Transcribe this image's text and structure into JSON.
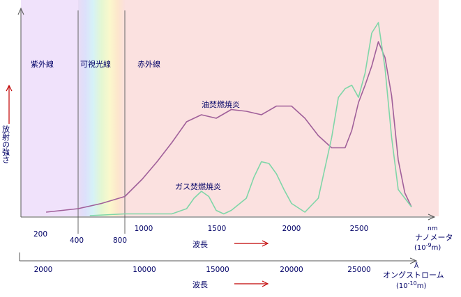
{
  "chart_data": {
    "type": "line",
    "region_labels": [
      "紫外線",
      "可視光線",
      "赤外線"
    ],
    "y_axis_label": "放射の強さ",
    "x_axis_label": "波長",
    "nm_axis": {
      "ticks": [
        "200",
        "400",
        "800",
        "1000",
        "1500",
        "2000",
        "2500"
      ],
      "unit_main": "ナノメータ",
      "unit_top": "nm",
      "unit_sub": "(10",
      "unit_exp": "-9",
      "unit_end": "m)"
    },
    "angstrom_axis": {
      "ticks": [
        "2000",
        "10000",
        "15000",
        "20000",
        "25000"
      ],
      "unit_main": "オングストローム",
      "unit_top": "Å",
      "unit_sub": "(10",
      "unit_exp": "-10",
      "unit_end": "m)"
    },
    "series": [
      {
        "name": "油焚燃焼炎",
        "color": "#a0609a",
        "x": [
          230,
          400,
          600,
          800,
          1000,
          1100,
          1200,
          1300,
          1400,
          1500,
          1600,
          1700,
          1800,
          1900,
          2000,
          2100,
          2200,
          2300,
          2400,
          2450,
          2500,
          2550,
          2600,
          2650,
          2700,
          2750,
          2800,
          2850,
          2900
        ],
        "y": [
          2,
          4,
          7,
          11,
          21,
          31,
          42,
          54,
          58,
          56,
          61,
          60,
          58,
          63,
          63,
          56,
          46,
          39,
          39,
          49,
          65,
          75,
          86,
          100,
          91,
          69,
          32,
          13,
          5
        ]
      },
      {
        "name": "ガス焚燃焼炎",
        "color": "#7fd6a8",
        "x": [
          500,
          800,
          1000,
          1200,
          1300,
          1350,
          1400,
          1450,
          1500,
          1550,
          1600,
          1700,
          1750,
          1800,
          1850,
          1900,
          1950,
          2000,
          2100,
          2200,
          2300,
          2350,
          2400,
          2450,
          2500,
          2550,
          2600,
          2650,
          2700,
          2750,
          2800,
          2900
        ],
        "y": [
          0,
          1,
          1,
          1,
          4,
          10,
          14,
          11,
          3,
          1,
          3,
          10,
          22,
          31,
          30,
          24,
          15,
          7,
          2,
          10,
          45,
          68,
          73,
          75,
          68,
          82,
          105,
          111,
          85,
          45,
          15,
          5
        ]
      }
    ]
  }
}
